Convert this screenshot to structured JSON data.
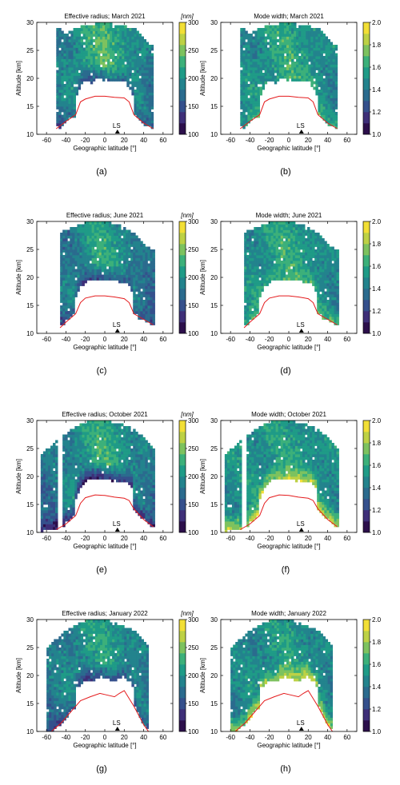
{
  "figure": {
    "colorbar_radius": {
      "unit": "[nm]",
      "min": 100,
      "max": 300,
      "ticks": [
        100,
        150,
        200,
        250,
        300
      ]
    },
    "colorbar_width": {
      "unit": "",
      "min": 1.0,
      "max": 2.0,
      "ticks": [
        "1.0",
        "1.2",
        "1.4",
        "1.6",
        "1.8",
        "2.0"
      ]
    },
    "palette": [
      "#2c0f4b",
      "#3e2f78",
      "#35508c",
      "#2b6b8e",
      "#23838d",
      "#1f9b87",
      "#3cb07a",
      "#7dc25f",
      "#bdd145",
      "#f2df36"
    ],
    "marker_label": "LS"
  },
  "chart_data": [
    {
      "panel": "(a)",
      "type": "heatmap",
      "title": "Effective radius; March 2021",
      "variable": "radius",
      "xlabel": "Geographic latitude [°]",
      "ylabel": "Altitude [km]",
      "xlim": [
        -70,
        70
      ],
      "ylim": [
        10,
        30
      ],
      "xticks": [
        -60,
        -40,
        -20,
        0,
        20,
        40,
        60
      ],
      "yticks": [
        10,
        15,
        20,
        25,
        30
      ],
      "lat_range": [
        -50,
        50
      ],
      "profile_top": {
        "lat": [
          -46,
          -40,
          -30,
          -20,
          0,
          15,
          30,
          40,
          46
        ],
        "alt": [
          29,
          28,
          29,
          29.5,
          30,
          29.5,
          29,
          27.5,
          26
        ]
      },
      "tropopause": {
        "lat": [
          -50,
          -40,
          -30,
          -25,
          -20,
          -10,
          0,
          10,
          20,
          25,
          30,
          40,
          50
        ],
        "alt": [
          11,
          12.3,
          13.5,
          15.8,
          16.3,
          16.8,
          16.8,
          16.6,
          16.5,
          15.8,
          13.5,
          12,
          11
        ]
      },
      "ls_lat": 13,
      "base": 200,
      "center": 235,
      "edge": 175,
      "low_alt": 160,
      "gap": []
    },
    {
      "panel": "(b)",
      "type": "heatmap",
      "title": "Mode width; March 2021",
      "variable": "width",
      "xlabel": "Geographic latitude [°]",
      "ylabel": "Altitude [km]",
      "xlim": [
        -70,
        70
      ],
      "ylim": [
        10,
        30
      ],
      "xticks": [
        -60,
        -40,
        -20,
        0,
        20,
        40,
        60
      ],
      "yticks": [
        10,
        15,
        20,
        25,
        30
      ],
      "lat_range": [
        -50,
        50
      ],
      "profile_top": {
        "lat": [
          -46,
          -40,
          -30,
          -20,
          0,
          15,
          30,
          40,
          46
        ],
        "alt": [
          29,
          28,
          29,
          29.5,
          30,
          29.5,
          29,
          27.5,
          26
        ]
      },
      "tropopause": {
        "lat": [
          -50,
          -40,
          -30,
          -25,
          -20,
          -10,
          0,
          10,
          20,
          25,
          30,
          40,
          50
        ],
        "alt": [
          11,
          12.3,
          13.5,
          15.8,
          16.3,
          16.8,
          16.8,
          16.6,
          16.5,
          15.8,
          13.5,
          12,
          11
        ]
      },
      "ls_lat": 13,
      "base": 1.55,
      "center": 1.6,
      "edge": 1.45,
      "low_alt": 1.6,
      "gap": []
    },
    {
      "panel": "(c)",
      "type": "heatmap",
      "title": "Effective radius; June 2021",
      "variable": "radius",
      "xlabel": "Geographic latitude [°]",
      "ylabel": "Altitude [km]",
      "xlim": [
        -70,
        70
      ],
      "ylim": [
        10,
        30
      ],
      "xticks": [
        -60,
        -40,
        -20,
        0,
        20,
        40,
        60
      ],
      "yticks": [
        10,
        15,
        20,
        25,
        30
      ],
      "lat_range": [
        -46,
        50
      ],
      "profile_top": {
        "lat": [
          -46,
          -40,
          -30,
          -20,
          0,
          15,
          30,
          40,
          50
        ],
        "alt": [
          28,
          28.5,
          29,
          30,
          30,
          29.5,
          28,
          26,
          25
        ]
      },
      "tropopause": {
        "lat": [
          -46,
          -40,
          -30,
          -25,
          -20,
          -10,
          0,
          10,
          20,
          25,
          30,
          40,
          50
        ],
        "alt": [
          11,
          12,
          13.5,
          15.5,
          16.3,
          16.7,
          16.7,
          16.5,
          16.2,
          15.5,
          13.5,
          12.5,
          11.5
        ]
      },
      "ls_lat": 13,
      "base": 210,
      "center": 220,
      "edge": 165,
      "low_alt": 150,
      "gap": []
    },
    {
      "panel": "(d)",
      "type": "heatmap",
      "title": "Mode width; June 2021",
      "variable": "width",
      "xlabel": "Geographic latitude [°]",
      "ylabel": "Altitude [km]",
      "xlim": [
        -70,
        70
      ],
      "ylim": [
        10,
        30
      ],
      "xticks": [
        -60,
        -40,
        -20,
        0,
        20,
        40,
        60
      ],
      "yticks": [
        10,
        15,
        20,
        25,
        30
      ],
      "lat_range": [
        -46,
        50
      ],
      "profile_top": {
        "lat": [
          -46,
          -40,
          -30,
          -20,
          0,
          15,
          30,
          40,
          50
        ],
        "alt": [
          28,
          28.5,
          29,
          30,
          30,
          29.5,
          28,
          26,
          25
        ]
      },
      "tropopause": {
        "lat": [
          -46,
          -40,
          -30,
          -25,
          -20,
          -10,
          0,
          10,
          20,
          25,
          30,
          40,
          50
        ],
        "alt": [
          11,
          12,
          13.5,
          15.5,
          16.3,
          16.7,
          16.7,
          16.5,
          16.2,
          15.5,
          13.5,
          12.5,
          11.5
        ]
      },
      "ls_lat": 13,
      "base": 1.55,
      "center": 1.6,
      "edge": 1.45,
      "low_alt": 1.65,
      "gap": []
    },
    {
      "panel": "(e)",
      "type": "heatmap",
      "title": "Effective radius; October 2021",
      "variable": "radius",
      "xlabel": "Geographic latitude [°]",
      "ylabel": "Altitude [km]",
      "xlim": [
        -70,
        70
      ],
      "ylim": [
        10,
        30
      ],
      "xticks": [
        -60,
        -40,
        -20,
        0,
        20,
        40,
        60
      ],
      "yticks": [
        10,
        15,
        20,
        25,
        30
      ],
      "lat_range": [
        -66,
        50
      ],
      "profile_top": {
        "lat": [
          -66,
          -55,
          -45,
          -30,
          -15,
          0,
          15,
          30,
          40,
          50
        ],
        "alt": [
          24,
          25.5,
          27,
          29,
          30,
          30,
          29.5,
          28.5,
          27,
          25
        ]
      },
      "tropopause": {
        "lat": [
          -50,
          -40,
          -30,
          -25,
          -20,
          -10,
          0,
          10,
          20,
          25,
          30,
          40,
          50
        ],
        "alt": [
          10.5,
          11.5,
          13,
          15.2,
          16.2,
          16.7,
          16.6,
          16.3,
          16.1,
          15.7,
          14.2,
          12.3,
          11
        ]
      },
      "ls_lat": 13,
      "base": 210,
      "center": 225,
      "edge": 175,
      "low_alt": 125,
      "gap": [
        -48,
        -43
      ]
    },
    {
      "panel": "(f)",
      "type": "heatmap",
      "title": "Mode width; October 2021",
      "variable": "width",
      "xlabel": "Geographic latitude [°]",
      "ylabel": "Altitude [km]",
      "xlim": [
        -70,
        70
      ],
      "ylim": [
        10,
        30
      ],
      "xticks": [
        -60,
        -40,
        -20,
        0,
        20,
        40,
        60
      ],
      "yticks": [
        10,
        15,
        20,
        25,
        30
      ],
      "lat_range": [
        -66,
        50
      ],
      "profile_top": {
        "lat": [
          -66,
          -55,
          -45,
          -30,
          -15,
          0,
          15,
          30,
          40,
          50
        ],
        "alt": [
          24,
          25.5,
          27,
          29,
          30,
          30,
          29.5,
          28.5,
          27,
          25
        ]
      },
      "tropopause": {
        "lat": [
          -50,
          -40,
          -30,
          -25,
          -20,
          -10,
          0,
          10,
          20,
          25,
          30,
          40,
          50
        ],
        "alt": [
          10.5,
          11.5,
          13,
          15.2,
          16.2,
          16.7,
          16.6,
          16.3,
          16.1,
          15.7,
          14.2,
          12.3,
          11
        ]
      },
      "ls_lat": 13,
      "base": 1.5,
      "center": 1.55,
      "edge": 1.5,
      "low_alt": 1.85,
      "gap": [
        -48,
        -43
      ]
    },
    {
      "panel": "(g)",
      "type": "heatmap",
      "title": "Effective radius; January 2022",
      "variable": "radius",
      "xlabel": "Geographic latitude [°]",
      "ylabel": "Altitude [km]",
      "xlim": [
        -70,
        70
      ],
      "ylim": [
        10,
        30
      ],
      "xticks": [
        -60,
        -40,
        -20,
        0,
        20,
        40,
        60
      ],
      "yticks": [
        10,
        15,
        20,
        25,
        30
      ],
      "lat_range": [
        -60,
        45
      ],
      "profile_top": {
        "lat": [
          -60,
          -50,
          -40,
          -30,
          -15,
          0,
          15,
          30,
          40,
          45
        ],
        "alt": [
          25,
          26.5,
          28,
          29,
          30,
          30,
          29,
          28,
          26.5,
          25
        ]
      },
      "tropopause": {
        "lat": [
          -55,
          -45,
          -35,
          -25,
          -15,
          -5,
          0,
          10,
          15,
          20,
          30,
          40,
          45
        ],
        "alt": [
          10,
          11.5,
          13.5,
          15.5,
          16.2,
          16.8,
          16.6,
          16.2,
          16.8,
          17.3,
          14.5,
          11.2,
          10
        ]
      },
      "ls_lat": 13,
      "base": 205,
      "center": 215,
      "edge": 180,
      "low_alt": 150,
      "gap": []
    },
    {
      "panel": "(h)",
      "type": "heatmap",
      "title": "Mode width; January 2022",
      "variable": "width",
      "xlabel": "Geographic latitude [°]",
      "ylabel": "Altitude [km]",
      "xlim": [
        -70,
        70
      ],
      "ylim": [
        10,
        30
      ],
      "xticks": [
        -60,
        -40,
        -20,
        0,
        20,
        40,
        60
      ],
      "yticks": [
        10,
        15,
        20,
        25,
        30
      ],
      "lat_range": [
        -60,
        45
      ],
      "profile_top": {
        "lat": [
          -60,
          -50,
          -40,
          -30,
          -15,
          0,
          15,
          30,
          40,
          45
        ],
        "alt": [
          25,
          26.5,
          28,
          29,
          30,
          30,
          29,
          28,
          26.5,
          25
        ]
      },
      "tropopause": {
        "lat": [
          -55,
          -45,
          -35,
          -25,
          -15,
          -5,
          0,
          10,
          15,
          20,
          30,
          40,
          45
        ],
        "alt": [
          10,
          11.5,
          13.5,
          15.5,
          16.2,
          16.8,
          16.6,
          16.2,
          16.8,
          17.3,
          14.5,
          11.2,
          10
        ]
      },
      "ls_lat": 13,
      "base": 1.5,
      "center": 1.55,
      "edge": 1.45,
      "low_alt": 1.85,
      "gap": []
    }
  ]
}
